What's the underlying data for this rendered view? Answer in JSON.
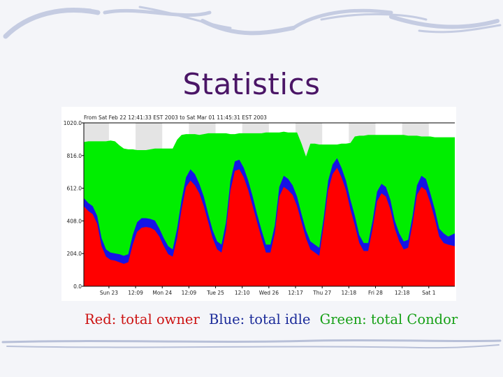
{
  "slide": {
    "title": "Statistics",
    "caption": {
      "red": "Red: total owner",
      "blue": "Blue: total idle",
      "green": "Green: total Condor"
    }
  },
  "colors": {
    "owner": "#ff0000",
    "idle": "#1414e6",
    "condor": "#00ee00",
    "title": "#4a1566",
    "band": "#e4e4e4"
  },
  "chart_data": {
    "type": "area",
    "stacked": true,
    "title": "From Sat Feb 22 12:41:33 EST 2003 to Sat Mar 01 11:45:31 EST 2003",
    "x_unit": "hours since start of range",
    "xlim": [
      0,
      167
    ],
    "ylim": [
      0,
      1020
    ],
    "y_ticks": [
      "1020.0",
      "816.0",
      "612.0",
      "408.0",
      "204.0",
      "0.0"
    ],
    "y_tick_values": [
      1020,
      816,
      612,
      408,
      204,
      0
    ],
    "x_tick_labels": [
      "Sun 23",
      "12:09",
      "Mon 24",
      "12:09",
      "Tue 25",
      "12:10",
      "Wed 26",
      "12:17",
      "Thu 27",
      "12:18",
      "Fri 28",
      "12:18",
      "Sat 1"
    ],
    "x_tick_positions": [
      11.3,
      23.3,
      35.3,
      47.3,
      59.3,
      71.3,
      83.3,
      95.3,
      107.3,
      119.3,
      131.3,
      143.3,
      155.3
    ],
    "legend": "none",
    "grid": false,
    "series": [
      {
        "name": "total owner",
        "x": [
          0,
          2,
          4,
          6,
          8,
          10,
          12,
          14,
          16,
          18,
          20,
          22,
          24,
          26,
          28,
          30,
          32,
          34,
          36,
          38,
          40,
          42,
          44,
          46,
          48,
          50,
          52,
          54,
          56,
          58,
          60,
          62,
          64,
          66,
          68,
          70,
          72,
          74,
          76,
          78,
          80,
          82,
          84,
          86,
          88,
          90,
          92,
          94,
          96,
          98,
          100,
          102,
          104,
          106,
          108,
          110,
          112,
          114,
          116,
          118,
          120,
          122,
          124,
          126,
          128,
          130,
          132,
          134,
          136,
          138,
          140,
          142,
          144,
          146,
          148,
          150,
          152,
          154,
          156,
          158,
          160,
          162,
          164,
          167
        ],
        "values": [
          500,
          470,
          450,
          390,
          250,
          185,
          165,
          160,
          150,
          140,
          150,
          260,
          340,
          365,
          370,
          365,
          350,
          310,
          250,
          200,
          185,
          300,
          480,
          620,
          660,
          630,
          580,
          500,
          400,
          300,
          230,
          210,
          350,
          600,
          720,
          730,
          680,
          600,
          500,
          400,
          300,
          210,
          210,
          330,
          560,
          620,
          600,
          570,
          500,
          400,
          300,
          230,
          210,
          190,
          380,
          600,
          700,
          740,
          680,
          600,
          480,
          380,
          270,
          220,
          220,
          360,
          530,
          580,
          560,
          480,
          360,
          280,
          230,
          240,
          390,
          570,
          620,
          600,
          520,
          420,
          310,
          270,
          260,
          250
        ]
      },
      {
        "name": "total idle",
        "x": [
          0,
          2,
          4,
          6,
          8,
          10,
          12,
          14,
          16,
          18,
          20,
          22,
          24,
          26,
          28,
          30,
          32,
          34,
          36,
          38,
          40,
          42,
          44,
          46,
          48,
          50,
          52,
          54,
          56,
          58,
          60,
          62,
          64,
          66,
          68,
          70,
          72,
          74,
          76,
          78,
          80,
          82,
          84,
          86,
          88,
          90,
          92,
          94,
          96,
          98,
          100,
          102,
          104,
          106,
          108,
          110,
          112,
          114,
          116,
          118,
          120,
          122,
          124,
          126,
          128,
          130,
          132,
          134,
          136,
          138,
          140,
          142,
          144,
          146,
          148,
          150,
          152,
          154,
          156,
          158,
          160,
          162,
          164,
          167
        ],
        "values": [
          550,
          520,
          500,
          440,
          300,
          230,
          210,
          205,
          200,
          190,
          200,
          320,
          400,
          425,
          425,
          420,
          410,
          360,
          300,
          250,
          230,
          360,
          540,
          680,
          730,
          700,
          640,
          560,
          450,
          350,
          280,
          260,
          400,
          660,
          780,
          790,
          740,
          660,
          560,
          450,
          350,
          260,
          260,
          380,
          620,
          690,
          670,
          630,
          560,
          450,
          350,
          280,
          260,
          240,
          430,
          660,
          760,
          800,
          740,
          660,
          540,
          440,
          320,
          270,
          270,
          410,
          590,
          640,
          620,
          540,
          410,
          330,
          280,
          290,
          440,
          630,
          690,
          670,
          580,
          480,
          360,
          330,
          310,
          330
        ]
      },
      {
        "name": "total Condor",
        "x": [
          0,
          2,
          4,
          6,
          8,
          10,
          12,
          14,
          16,
          18,
          20,
          22,
          24,
          26,
          28,
          30,
          32,
          34,
          36,
          38,
          40,
          42,
          44,
          46,
          48,
          50,
          52,
          54,
          56,
          58,
          60,
          62,
          64,
          66,
          68,
          70,
          72,
          74,
          76,
          78,
          80,
          82,
          84,
          86,
          88,
          90,
          92,
          94,
          96,
          98,
          100,
          102,
          104,
          106,
          108,
          110,
          112,
          114,
          116,
          118,
          120,
          122,
          124,
          126,
          128,
          130,
          132,
          134,
          136,
          138,
          140,
          142,
          144,
          146,
          148,
          150,
          152,
          154,
          156,
          158,
          160,
          162,
          164,
          167
        ],
        "values": [
          900,
          905,
          905,
          905,
          905,
          905,
          910,
          905,
          880,
          860,
          855,
          855,
          850,
          850,
          850,
          855,
          860,
          860,
          860,
          860,
          860,
          915,
          945,
          950,
          950,
          950,
          945,
          950,
          955,
          955,
          955,
          955,
          955,
          950,
          950,
          955,
          955,
          955,
          955,
          955,
          955,
          960,
          960,
          960,
          960,
          965,
          960,
          960,
          960,
          890,
          810,
          890,
          890,
          885,
          885,
          885,
          885,
          885,
          890,
          890,
          895,
          935,
          940,
          940,
          945,
          945,
          945,
          945,
          945,
          945,
          945,
          945,
          945,
          940,
          940,
          940,
          935,
          935,
          935,
          930,
          930,
          930,
          930,
          930
        ]
      }
    ]
  }
}
